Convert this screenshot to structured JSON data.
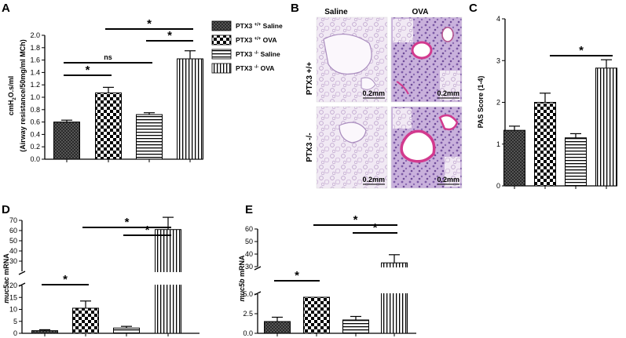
{
  "legend": [
    {
      "label": "PTX3 +/+ Saline",
      "pattern": "dark"
    },
    {
      "label": "PTX3 +/+ OVA",
      "pattern": "checker"
    },
    {
      "label": "PTX3 -/- Saline",
      "pattern": "hstripe"
    },
    {
      "label": "PTX3 -/- OVA",
      "pattern": "vstripe"
    }
  ],
  "panelB": {
    "letter": "B",
    "col_saline": "Saline",
    "col_ova": "OVA",
    "row_wt": "PTX3 +/+",
    "row_ko": "PTX3 -/-",
    "scale_bar": "0.2mm"
  },
  "chart_data": [
    {
      "panel": "A",
      "type": "bar",
      "ylabel_line1": "cmH2O.s/ml",
      "ylabel_line2": "(Airway resistance/50mg/ml MCh)",
      "ylim": [
        0,
        2.0
      ],
      "yticks": [
        "0.0",
        "0.2",
        "0.4",
        "0.6",
        "0.8",
        "1.0",
        "1.2",
        "1.4",
        "1.6",
        "1.8",
        "2.0"
      ],
      "values": [
        0.6,
        1.07,
        0.72,
        1.62
      ],
      "errors": [
        0.03,
        0.09,
        0.03,
        0.13
      ],
      "brackets": [
        {
          "from": 0,
          "to": 1,
          "label": "*"
        },
        {
          "from": 0,
          "to": 2,
          "label": "ns"
        },
        {
          "from": 2,
          "to": 3,
          "label": "*"
        },
        {
          "from": 1,
          "to": 3,
          "label": "*"
        }
      ]
    },
    {
      "panel": "C",
      "type": "bar",
      "ylabel": "PAS Score (1-4)",
      "ylim": [
        0,
        4
      ],
      "yticks": [
        "0",
        "1",
        "2",
        "3",
        "4"
      ],
      "values": [
        1.33,
        2.0,
        1.15,
        2.82
      ],
      "errors": [
        0.1,
        0.22,
        0.1,
        0.2
      ],
      "brackets": [
        {
          "from": 1,
          "to": 3,
          "label": "*",
          "open": true
        }
      ]
    },
    {
      "panel": "D",
      "type": "bar",
      "ylabel_gene": "muc5ac",
      "ylabel_suffix": " mRNA",
      "axis_break": true,
      "yticks": [
        "0",
        "5",
        "10",
        "15",
        "20",
        "30",
        "40",
        "50",
        "60",
        "70"
      ],
      "values": [
        1.1,
        10.5,
        2.2,
        61
      ],
      "errors": [
        0.4,
        3.0,
        0.7,
        12
      ],
      "brackets": [
        {
          "from": 0,
          "to": 1,
          "label": "*"
        },
        {
          "from": 2,
          "to": 3,
          "label": "*"
        },
        {
          "from": 1,
          "to": 3,
          "label": "*"
        }
      ]
    },
    {
      "panel": "E",
      "type": "bar",
      "ylabel_gene": "muc5b",
      "ylabel_suffix": " mRNA",
      "axis_break": true,
      "yticks": [
        "0.0",
        "2.5",
        "5.0",
        "30",
        "40",
        "50",
        "60"
      ],
      "values": [
        1.5,
        4.6,
        1.7,
        33
      ],
      "errors": [
        0.55,
        0.6,
        0.45,
        6.5
      ],
      "brackets": [
        {
          "from": 0,
          "to": 1,
          "label": "*"
        },
        {
          "from": 2,
          "to": 3,
          "label": "*"
        },
        {
          "from": 1,
          "to": 3,
          "label": "*"
        }
      ]
    }
  ]
}
